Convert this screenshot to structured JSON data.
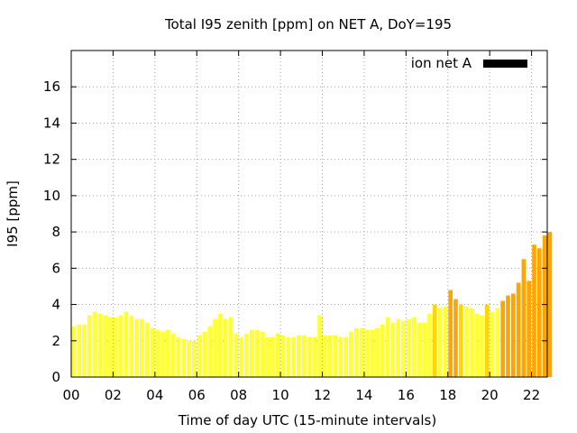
{
  "chart_data": {
    "type": "bar",
    "title": "Total I95 zenith [ppm] on NET A, DoY=195",
    "xlabel": "Time of day UTC (15-minute intervals)",
    "ylabel": "I95 [ppm]",
    "legend": {
      "label": "ion net A",
      "color": "#000000",
      "position": "top-right"
    },
    "ylim": [
      0,
      18
    ],
    "xlim": [
      0,
      22.75
    ],
    "x_ticks": [
      "00",
      "02",
      "04",
      "06",
      "08",
      "10",
      "12",
      "14",
      "16",
      "18",
      "20",
      "22"
    ],
    "y_ticks": [
      "0",
      "2",
      "4",
      "6",
      "8",
      "10",
      "12",
      "14",
      "16"
    ],
    "grid": true,
    "bar_colors": {
      "low": "#ffff33",
      "mid": "#ffd700",
      "high": "#ffa500"
    },
    "values": [
      2.8,
      2.9,
      2.9,
      3.4,
      3.6,
      3.5,
      3.4,
      3.3,
      3.3,
      3.4,
      3.6,
      3.4,
      3.2,
      3.2,
      3.0,
      2.7,
      2.6,
      2.5,
      2.6,
      2.4,
      2.2,
      2.1,
      2.0,
      2.0,
      2.3,
      2.5,
      2.8,
      3.2,
      3.5,
      3.2,
      3.3,
      2.4,
      2.2,
      2.4,
      2.6,
      2.6,
      2.5,
      2.2,
      2.2,
      2.4,
      2.3,
      2.2,
      2.2,
      2.3,
      2.3,
      2.2,
      2.2,
      3.4,
      2.3,
      2.3,
      2.3,
      2.2,
      2.2,
      2.5,
      2.7,
      2.7,
      2.6,
      2.6,
      2.7,
      2.9,
      3.3,
      3.0,
      3.2,
      3.1,
      3.2,
      3.3,
      3.0,
      3.0,
      3.5,
      4.0,
      3.8,
      3.9,
      4.8,
      4.3,
      4.0,
      3.9,
      3.8,
      3.5,
      3.4,
      4.0,
      3.6,
      3.8,
      4.2,
      4.5,
      4.6,
      5.2,
      6.5,
      5.3,
      7.3,
      7.1,
      7.8,
      8.0
    ]
  }
}
